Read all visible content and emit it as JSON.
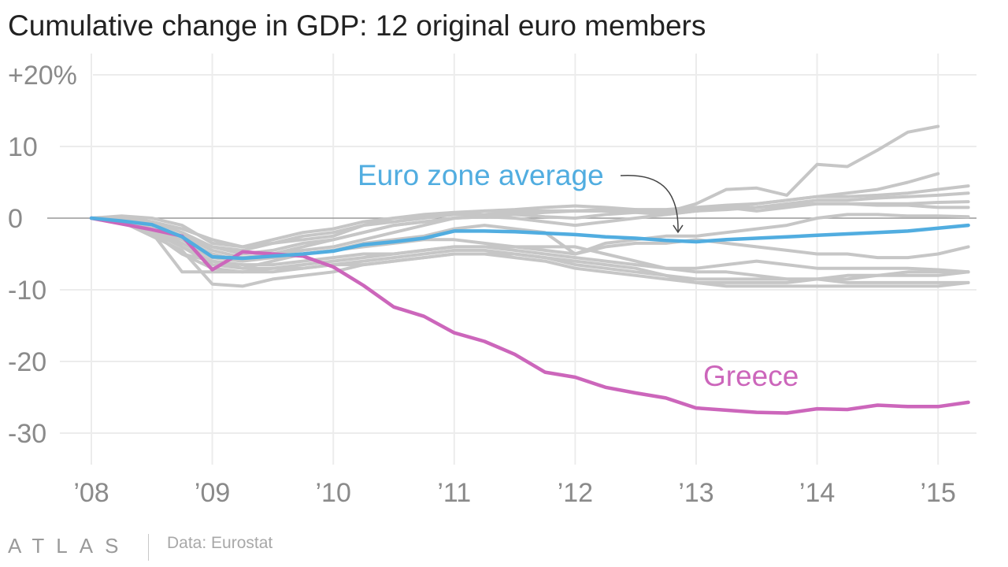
{
  "chart_data": {
    "type": "line",
    "title": "Cumulative change in GDP: 12 original euro members",
    "xlabel": "",
    "ylabel": "",
    "x_ticks": [
      "’08",
      "’09",
      "’10",
      "’11",
      "’12",
      "’13",
      "’14",
      "’15"
    ],
    "y_ticks": [
      "+20%",
      "10",
      "0",
      "-10",
      "-20",
      "-30"
    ],
    "xlim": [
      2008.0,
      2015.3
    ],
    "ylim": [
      -33,
      22
    ],
    "grid": true,
    "x": [
      2008.0,
      2008.25,
      2008.5,
      2008.75,
      2009.0,
      2009.25,
      2009.5,
      2009.75,
      2010.0,
      2010.25,
      2010.5,
      2010.75,
      2011.0,
      2011.25,
      2011.5,
      2011.75,
      2012.0,
      2012.25,
      2012.5,
      2012.75,
      2013.0,
      2013.25,
      2013.5,
      2013.75,
      2014.0,
      2014.25,
      2014.5,
      2014.75,
      2015.0,
      2015.25
    ],
    "series": [
      {
        "name": "Greece",
        "highlight": true,
        "color": "#cc66bb",
        "values": [
          0,
          -0.8,
          -1.6,
          -2.5,
          -7.2,
          -4.7,
          -5.0,
          -5.3,
          -6.8,
          -9.4,
          -12.4,
          -13.7,
          -16.0,
          -17.2,
          -19.0,
          -21.5,
          -22.2,
          -23.6,
          -24.4,
          -25.1,
          -26.5,
          -26.8,
          -27.1,
          -27.2,
          -26.6,
          -26.7,
          -26.1,
          -26.3,
          -26.3,
          -25.7
        ]
      },
      {
        "name": "Euro zone average",
        "highlight": true,
        "color": "#51ade0",
        "values": [
          0,
          -0.4,
          -0.9,
          -2.6,
          -5.4,
          -5.6,
          -5.3,
          -5.0,
          -4.6,
          -3.7,
          -3.3,
          -2.8,
          -1.8,
          -1.8,
          -1.9,
          -2.1,
          -2.3,
          -2.6,
          -2.8,
          -3.1,
          -3.3,
          -3.0,
          -2.8,
          -2.6,
          -2.4,
          -2.2,
          -2.0,
          -1.8,
          -1.4,
          -1.0
        ]
      },
      {
        "values": [
          0,
          0.3,
          0,
          -1,
          -3.5,
          -4,
          -3,
          -2,
          -1.5,
          -0.5,
          0,
          0.3,
          0.5,
          1,
          1.2,
          1.5,
          1.7,
          1.5,
          1.2,
          0.8,
          2,
          4,
          4.2,
          3.2,
          7.5,
          7.2,
          9.5,
          12,
          12.8,
          null
        ]
      },
      {
        "values": [
          0,
          0.2,
          -0.5,
          -2,
          -4,
          -4.5,
          -3.5,
          -3,
          -2.5,
          -1,
          0,
          0.5,
          0.8,
          1,
          1,
          1,
          1,
          1,
          1,
          1,
          1,
          1.5,
          2,
          2.5,
          3,
          3.5,
          4,
          5,
          6.2,
          null
        ]
      },
      {
        "values": [
          0,
          0,
          -0.5,
          -1.5,
          -3,
          -4,
          -3.5,
          -2.5,
          -2,
          -1,
          -0.5,
          0,
          0.5,
          0.5,
          0.8,
          1,
          1,
          1.2,
          1.2,
          1.2,
          1.5,
          1.8,
          2,
          2.5,
          3,
          3,
          3.2,
          3.5,
          4,
          4.5
        ]
      },
      {
        "values": [
          0,
          -0.2,
          -1,
          -2.5,
          -4,
          -5,
          -4.5,
          -3.5,
          -3,
          -2,
          -1,
          -0.5,
          0,
          0.2,
          0.5,
          0.8,
          1,
          1,
          0.8,
          0.5,
          1,
          1.2,
          1.5,
          2,
          2.5,
          2.5,
          2.8,
          3,
          3.2,
          3.5
        ]
      },
      {
        "values": [
          0,
          -0.5,
          -1.5,
          -3,
          -5,
          -6,
          -5,
          -4.5,
          -4,
          -3,
          -2,
          -1,
          0,
          0.3,
          0.5,
          0.2,
          0,
          0.5,
          0.8,
          1,
          1.2,
          1.3,
          1.5,
          1.8,
          2,
          2,
          2,
          2,
          2.2,
          2.3
        ]
      },
      {
        "values": [
          0,
          -0.3,
          -1,
          -2.5,
          -4.5,
          -5.5,
          -5,
          -4,
          -3,
          -2,
          -1,
          -0.5,
          0,
          0.2,
          0,
          -0.5,
          -1,
          -0.5,
          0,
          0.5,
          1,
          1.5,
          1,
          1.5,
          2,
          2,
          1.8,
          1.8,
          1.5,
          1.5
        ]
      },
      {
        "values": [
          0,
          -0.5,
          -1.5,
          -4,
          -6.5,
          -7,
          -6,
          -5,
          -4.5,
          -3.5,
          -3,
          -2.5,
          -1.5,
          -1,
          -1.5,
          -2,
          -5,
          -3.5,
          -3,
          -2.5,
          -2.5,
          -2,
          -1.5,
          -1,
          0,
          0.5,
          0.5,
          0.3,
          0.3,
          0.2
        ]
      },
      {
        "values": [
          0,
          -0.5,
          -1.5,
          -3.5,
          -5.5,
          -6,
          -5.5,
          -5,
          -4.5,
          -4,
          -3.5,
          -3,
          -3,
          -3.5,
          -4,
          -4.5,
          -5,
          -4,
          -3.5,
          -3.5,
          -3,
          -3.5,
          -4,
          -4.5,
          -5,
          -5,
          -5.5,
          -5.5,
          -5,
          -4
        ]
      },
      {
        "values": [
          0,
          -0.5,
          -2,
          -5,
          -7,
          -7.5,
          -7,
          -6.5,
          -6,
          -5.5,
          -5,
          -4.5,
          -4,
          -4,
          -4.5,
          -5,
          -5.5,
          -6,
          -6.5,
          -7,
          -7,
          -6.5,
          -6,
          -6.5,
          -7,
          -7,
          -7,
          -7,
          -7.2,
          -7.5
        ]
      },
      {
        "values": [
          0,
          -0.5,
          -2,
          -7.5,
          -7.5,
          -7.5,
          -7.5,
          -7,
          -6.5,
          -6.5,
          -6,
          -5.5,
          -5,
          -5,
          -5,
          -5.5,
          -6.5,
          -7,
          -7.5,
          -8,
          -8.5,
          -8.5,
          -8.5,
          -8.5,
          -8.5,
          -8,
          -8,
          -8,
          -8,
          -7.5
        ]
      },
      {
        "values": [
          0,
          -0.5,
          -2.5,
          -4.5,
          -9.2,
          -9.5,
          -8.5,
          -8,
          -7.5,
          -6.5,
          -6,
          -5.5,
          -5,
          -5,
          -5.5,
          -6,
          -7,
          -7.5,
          -8,
          -8.5,
          -9,
          -9,
          -9,
          -9,
          -8.5,
          -8.5,
          -8,
          -7.5,
          -7.5,
          -7.5
        ]
      },
      {
        "values": [
          0,
          -0.5,
          -2,
          -5,
          -6,
          -6.5,
          -6.5,
          -6,
          -5.5,
          -5,
          -5,
          -4.5,
          -4,
          -4,
          -4,
          -4,
          -4,
          -5,
          -6,
          -7,
          -7.5,
          -7.5,
          -8,
          -8.5,
          -8.5,
          -9,
          -9,
          -9,
          -9,
          -9
        ]
      },
      {
        "values": [
          0,
          -0.5,
          -2,
          -4,
          -6,
          -7,
          -7,
          -7,
          -6.5,
          -6,
          -5.5,
          -5,
          -4.5,
          -4.5,
          -5,
          -5.5,
          -6,
          -6.5,
          -7,
          -8,
          -9,
          -9.5,
          -9.5,
          -9.5,
          -9.5,
          -9.5,
          -9.5,
          -9.5,
          -9.5,
          -9
        ]
      }
    ],
    "annotations": [
      {
        "text": "Euro zone average",
        "color": "#51ade0",
        "arrow_to": [
          2012.85,
          -2.3
        ]
      },
      {
        "text": "Greece",
        "color": "#cc66bb"
      }
    ]
  },
  "footer": {
    "logo": "ATLAS",
    "source": "Data: Eurostat"
  }
}
